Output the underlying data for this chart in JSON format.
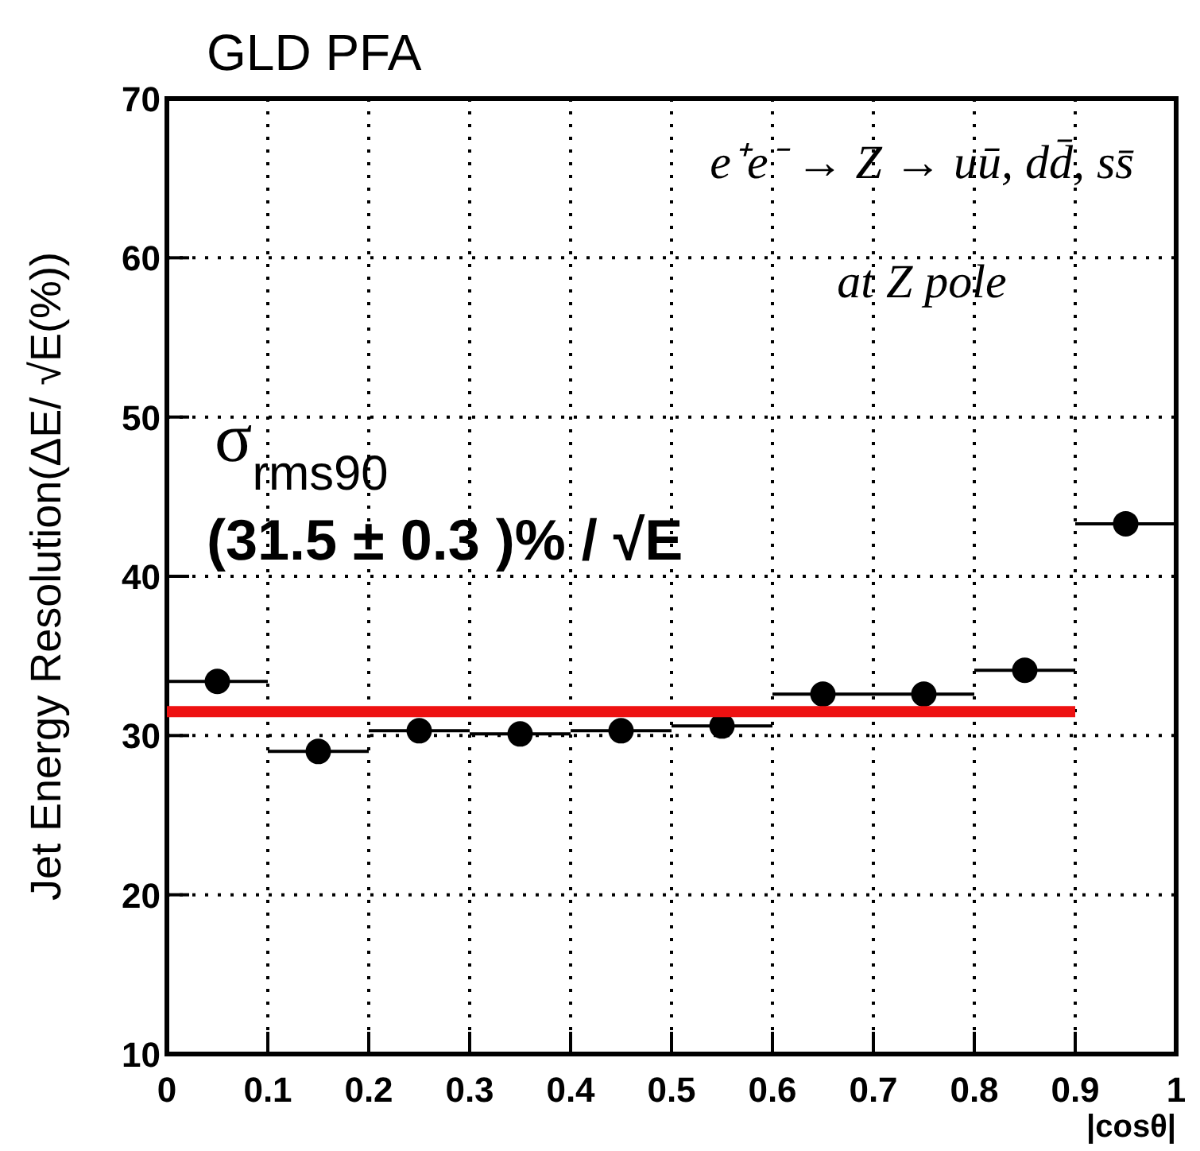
{
  "chart_data": {
    "type": "scatter",
    "title": "GLD PFA",
    "xlabel": "|cosθ|",
    "ylabel": "Jet Energy Resolution(ΔE/ √E(%))",
    "x": [
      0.05,
      0.15,
      0.25,
      0.35,
      0.45,
      0.55,
      0.65,
      0.75,
      0.85,
      0.95
    ],
    "series": [
      {
        "color": "#000000",
        "values": [
          33.4,
          29.0,
          30.3,
          30.1,
          30.3,
          30.6,
          32.6,
          32.6,
          34.1,
          43.3
        ],
        "xerrors": [
          0.05,
          0.05,
          0.05,
          0.05,
          0.05,
          0.05,
          0.05,
          0.05,
          0.05,
          0.05
        ]
      },
      {
        "type": "line",
        "marker": "none",
        "color": "#ee1111",
        "x": [
          0,
          0.9
        ],
        "values": [
          31.5,
          31.5
        ]
      }
    ],
    "xlim": [
      0,
      1
    ],
    "ylim": [
      10,
      70
    ],
    "xticks": [
      0,
      0.1,
      0.2,
      0.3,
      0.4,
      0.5,
      0.6,
      0.7,
      0.8,
      0.9,
      1
    ],
    "yticks": [
      10,
      20,
      30,
      40,
      50,
      60,
      70
    ],
    "grid": true,
    "marker": "circle",
    "line_style": "solid",
    "annotations": [
      "e⁺e⁻ → Z → uū, dd̄, ss̄",
      "at Z pole",
      "σ$_{rms90}$",
      "(31.5 ± 0.3 )% / √E"
    ]
  }
}
